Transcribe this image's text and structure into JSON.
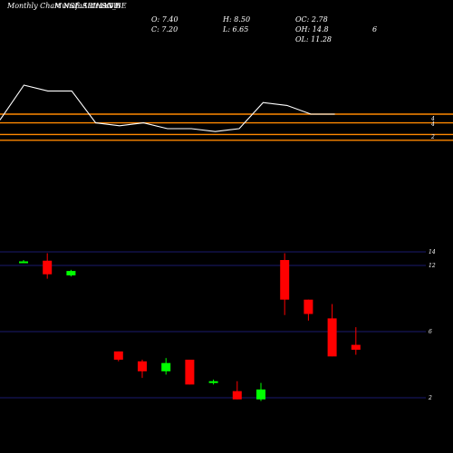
{
  "header": {
    "title_left": "Monthly Chart NSE:ARIHANT",
    "title_mid": "MunafaSutra.com",
    "symbol": "SG_BE"
  },
  "stats": {
    "open": "O: 7.40",
    "close": "C: 7.20",
    "high": "H: 8.50",
    "low": "L: 6.65",
    "oc": "OC: 2.78",
    "oh": "OH: 14.8",
    "ol": "OL: 11.28",
    "extra": "6"
  },
  "chart_data": [
    {
      "type": "line",
      "note": "upper indicator panel",
      "series": [
        {
          "values": [
            4.6,
            5.2,
            5.1,
            5.1,
            4.55,
            4.5,
            4.55,
            4.45,
            4.45,
            4.4,
            4.45,
            4.9,
            4.85,
            4.7,
            4.7
          ]
        }
      ],
      "hlines": [
        4.7,
        4.55,
        4.35,
        4.25
      ],
      "tick_labels": [
        "4",
        "4",
        "2"
      ]
    },
    {
      "type": "candlestick",
      "note": "monthly OHLC; green = up, red = down",
      "yticks": [
        "14",
        "12",
        "6",
        "2"
      ],
      "grid_values": [
        14,
        12,
        6,
        2
      ],
      "candles": [
        {
          "o": 12.4,
          "h": 12.8,
          "l": 12.4,
          "c": 12.6
        },
        {
          "o": 12.7,
          "h": 13.8,
          "l": 10.8,
          "c": 11.2
        },
        {
          "o": 11.1,
          "h": 11.6,
          "l": 11.0,
          "c": 11.5
        },
        null,
        {
          "o": 4.8,
          "h": 4.8,
          "l": 4.2,
          "c": 4.3
        },
        {
          "o": 4.2,
          "h": 4.3,
          "l": 3.2,
          "c": 3.6
        },
        {
          "o": 3.6,
          "h": 4.4,
          "l": 3.4,
          "c": 4.1
        },
        {
          "o": 4.3,
          "h": 4.3,
          "l": 2.8,
          "c": 2.8
        },
        {
          "o": 2.9,
          "h": 3.1,
          "l": 2.8,
          "c": 3.0
        },
        {
          "o": 2.4,
          "h": 3.0,
          "l": 1.9,
          "c": 1.9
        },
        {
          "o": 1.9,
          "h": 2.9,
          "l": 1.8,
          "c": 2.5
        },
        {
          "o": 12.8,
          "h": 13.8,
          "l": 7.5,
          "c": 8.9
        },
        {
          "o": 8.9,
          "h": 8.9,
          "l": 7.0,
          "c": 7.6
        },
        {
          "o": 7.2,
          "h": 8.5,
          "l": 4.5,
          "c": 4.5
        },
        {
          "o": 5.2,
          "h": 6.4,
          "l": 4.6,
          "c": 4.9
        }
      ],
      "colors": {
        "up": "#00ff00",
        "down": "#ff0000",
        "grid": "#1a1a6e",
        "line": "#ffffff",
        "hline": "#ff8800"
      }
    }
  ]
}
